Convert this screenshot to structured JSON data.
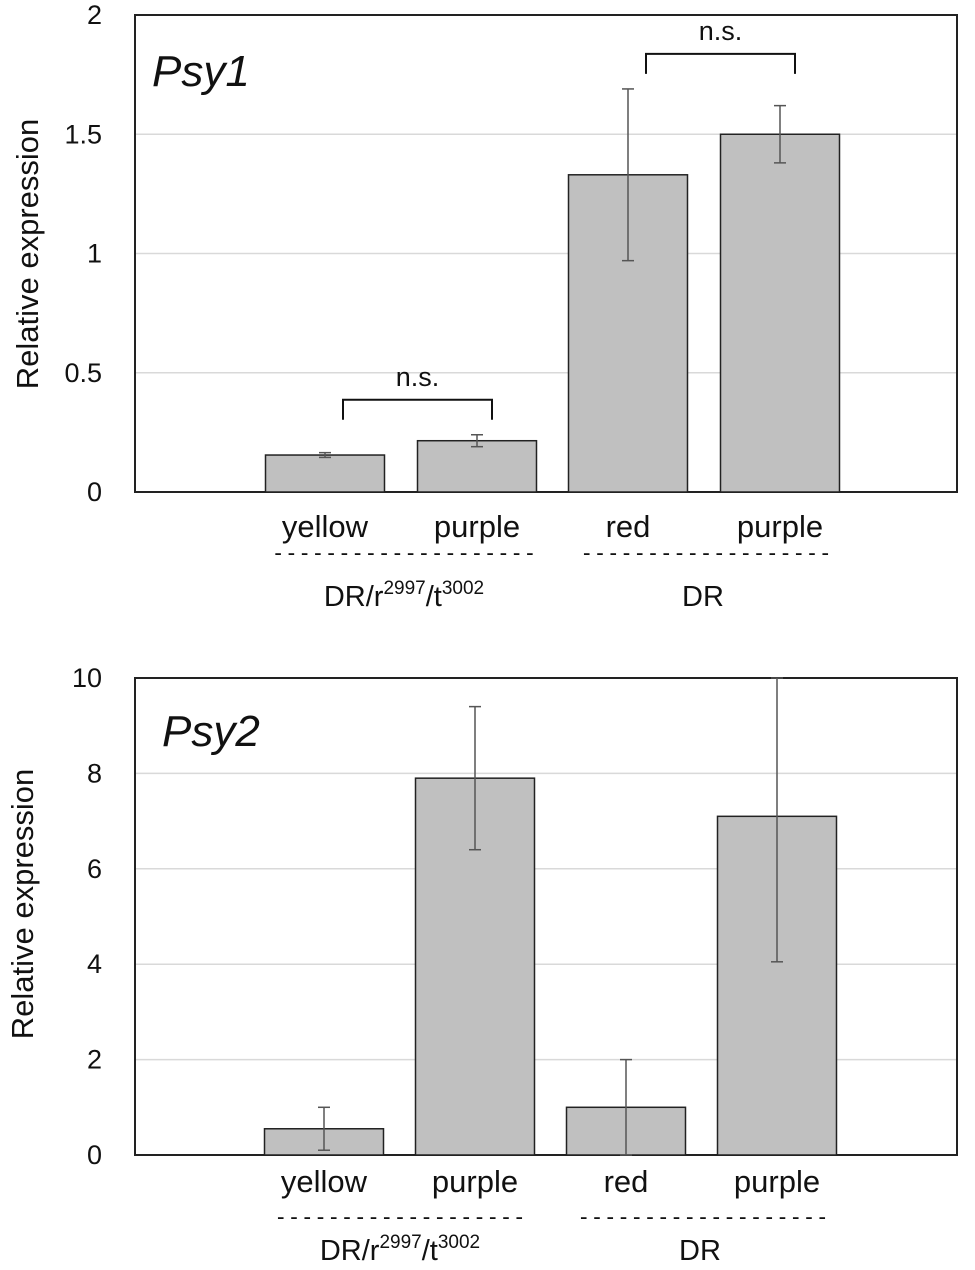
{
  "chart_data": [
    {
      "type": "bar",
      "title": "Psy1",
      "ylabel": "Relative expression",
      "ylim": [
        0,
        2
      ],
      "yticks": [
        "0",
        "0.5",
        "1",
        "1.5",
        "2"
      ],
      "ytick_values": [
        0,
        0.5,
        1,
        1.5,
        2
      ],
      "categories": [
        "yellow",
        "purple",
        "red",
        "purple"
      ],
      "values": [
        0.155,
        0.215,
        1.33,
        1.5
      ],
      "errors": [
        0.01,
        0.025,
        0.36,
        0.12
      ],
      "groups": [
        {
          "base": "DR/r",
          "sup1": "2997",
          "mid": "/t",
          "sup2": "3002",
          "dashes": "--------------------"
        },
        {
          "base": "DR",
          "dashes": "-------------------"
        }
      ],
      "annotations": [
        {
          "text": "n.s.",
          "from": 0,
          "to": 1
        },
        {
          "text": "n.s.",
          "from": 2,
          "to": 3
        }
      ],
      "grid": true
    },
    {
      "type": "bar",
      "title": "Psy2",
      "ylabel": "Relative expression",
      "ylim": [
        0,
        10
      ],
      "yticks": [
        "0",
        "2",
        "4",
        "6",
        "8",
        "10"
      ],
      "ytick_values": [
        0,
        2,
        4,
        6,
        8,
        10
      ],
      "categories": [
        "yellow",
        "purple",
        "red",
        "purple"
      ],
      "values": [
        0.55,
        7.9,
        1.0,
        7.1
      ],
      "errors": [
        0.45,
        1.5,
        1.0,
        3.05
      ],
      "groups": [
        {
          "base": "DR/r",
          "sup1": "2997",
          "mid": "/t",
          "sup2": "3002",
          "dashes": "-------------------"
        },
        {
          "base": "DR",
          "dashes": "-------------------"
        }
      ],
      "annotations": [],
      "grid": true
    }
  ],
  "colors": {
    "bar_fill": "#c0c0c0",
    "bar_stroke": "#222222",
    "grid": "#d9d9d9",
    "error": "#555555"
  }
}
